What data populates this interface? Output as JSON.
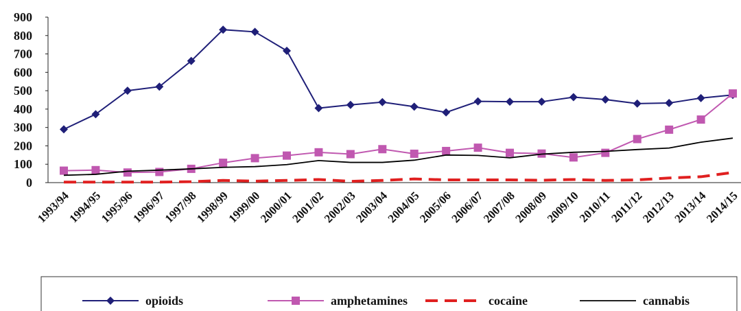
{
  "chart_data": {
    "type": "line",
    "categories": [
      "1993/94",
      "1994/95",
      "1995/96",
      "1996/97",
      "1997/98",
      "1998/99",
      "1999/00",
      "2000/01",
      "2001/02",
      "2002/03",
      "2003/04",
      "2004/05",
      "2005/06",
      "2006/07",
      "2007/08",
      "2008/09",
      "2009/10",
      "2010/11",
      "2011/12",
      "2012/13",
      "2013/14",
      "2014/15"
    ],
    "series": [
      {
        "name": "opioids",
        "color": "#1f1f78",
        "marker": "diamond",
        "dash": "solid",
        "values": [
          290,
          372,
          500,
          522,
          662,
          832,
          820,
          717,
          405,
          423,
          438,
          413,
          382,
          442,
          440,
          440,
          465,
          452,
          430,
          433,
          460,
          477
        ]
      },
      {
        "name": "amphetamines",
        "color": "#c058b0",
        "marker": "square",
        "dash": "solid",
        "values": [
          65,
          68,
          55,
          58,
          75,
          108,
          133,
          147,
          165,
          155,
          182,
          157,
          172,
          190,
          162,
          158,
          137,
          162,
          237,
          288,
          343,
          485
        ]
      },
      {
        "name": "cocaine",
        "color": "#e02020",
        "marker": "none",
        "dash": "dashed",
        "values": [
          3,
          3,
          3,
          3,
          5,
          12,
          8,
          12,
          17,
          7,
          12,
          20,
          15,
          15,
          15,
          13,
          17,
          12,
          15,
          25,
          32,
          55
        ]
      },
      {
        "name": "cannabis",
        "color": "#000000",
        "marker": "none",
        "dash": "solid",
        "values": [
          40,
          45,
          62,
          68,
          75,
          83,
          87,
          98,
          120,
          110,
          110,
          122,
          150,
          148,
          135,
          155,
          165,
          170,
          180,
          188,
          220,
          242
        ]
      }
    ],
    "ylim": [
      0,
      900
    ],
    "yticks": [
      0,
      100,
      200,
      300,
      400,
      500,
      600,
      700,
      800,
      900
    ],
    "grid": false,
    "legend": "bottom"
  }
}
